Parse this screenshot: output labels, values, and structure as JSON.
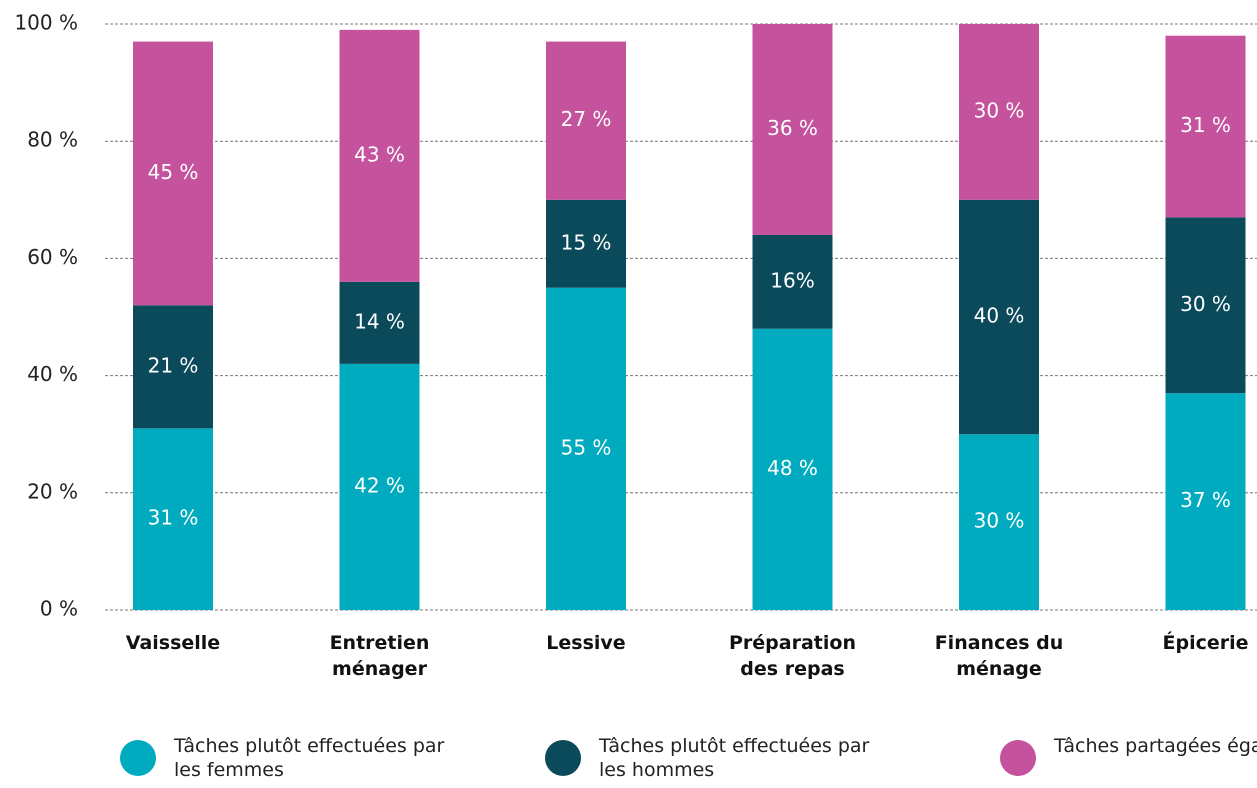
{
  "chart_data": {
    "type": "stacked_bar",
    "categories": [
      "Vaisselle",
      "Entretien ménager",
      "Lessive",
      "Préparation des repas",
      "Finances du ménage",
      "Épicerie"
    ],
    "series": [
      {
        "name": "Tâches plutôt effectuées par les femmes",
        "color": "#00abbf",
        "values": [
          31,
          42,
          55,
          48,
          30,
          37
        ],
        "value_labels": [
          "31 %",
          "42 %",
          "55 %",
          "48 %",
          "30 %",
          "37 %"
        ]
      },
      {
        "name": "Tâches plutôt effectuées par les hommes",
        "color": "#0b4a5b",
        "values": [
          21,
          14,
          15,
          16,
          40,
          30
        ],
        "value_labels": [
          "21 %",
          "14 %",
          "15 %",
          "16%",
          "40 %",
          "30 %"
        ]
      },
      {
        "name": "Tâches partagées également",
        "color": "#c4529d",
        "values": [
          45,
          43,
          27,
          36,
          30,
          31
        ],
        "value_labels": [
          "45 %",
          "43 %",
          "27 %",
          "36 %",
          "30 %",
          "31 %"
        ]
      }
    ],
    "ylim": [
      0,
      100
    ],
    "yticks": [
      {
        "value": 0,
        "label": "0 %"
      },
      {
        "value": 20,
        "label": "20 %"
      },
      {
        "value": 40,
        "label": "40 %"
      },
      {
        "value": 60,
        "label": "60 %"
      },
      {
        "value": 80,
        "label": "80 %"
      },
      {
        "value": 100,
        "label": "100 %"
      }
    ],
    "grid": true,
    "legend": "bottom"
  }
}
